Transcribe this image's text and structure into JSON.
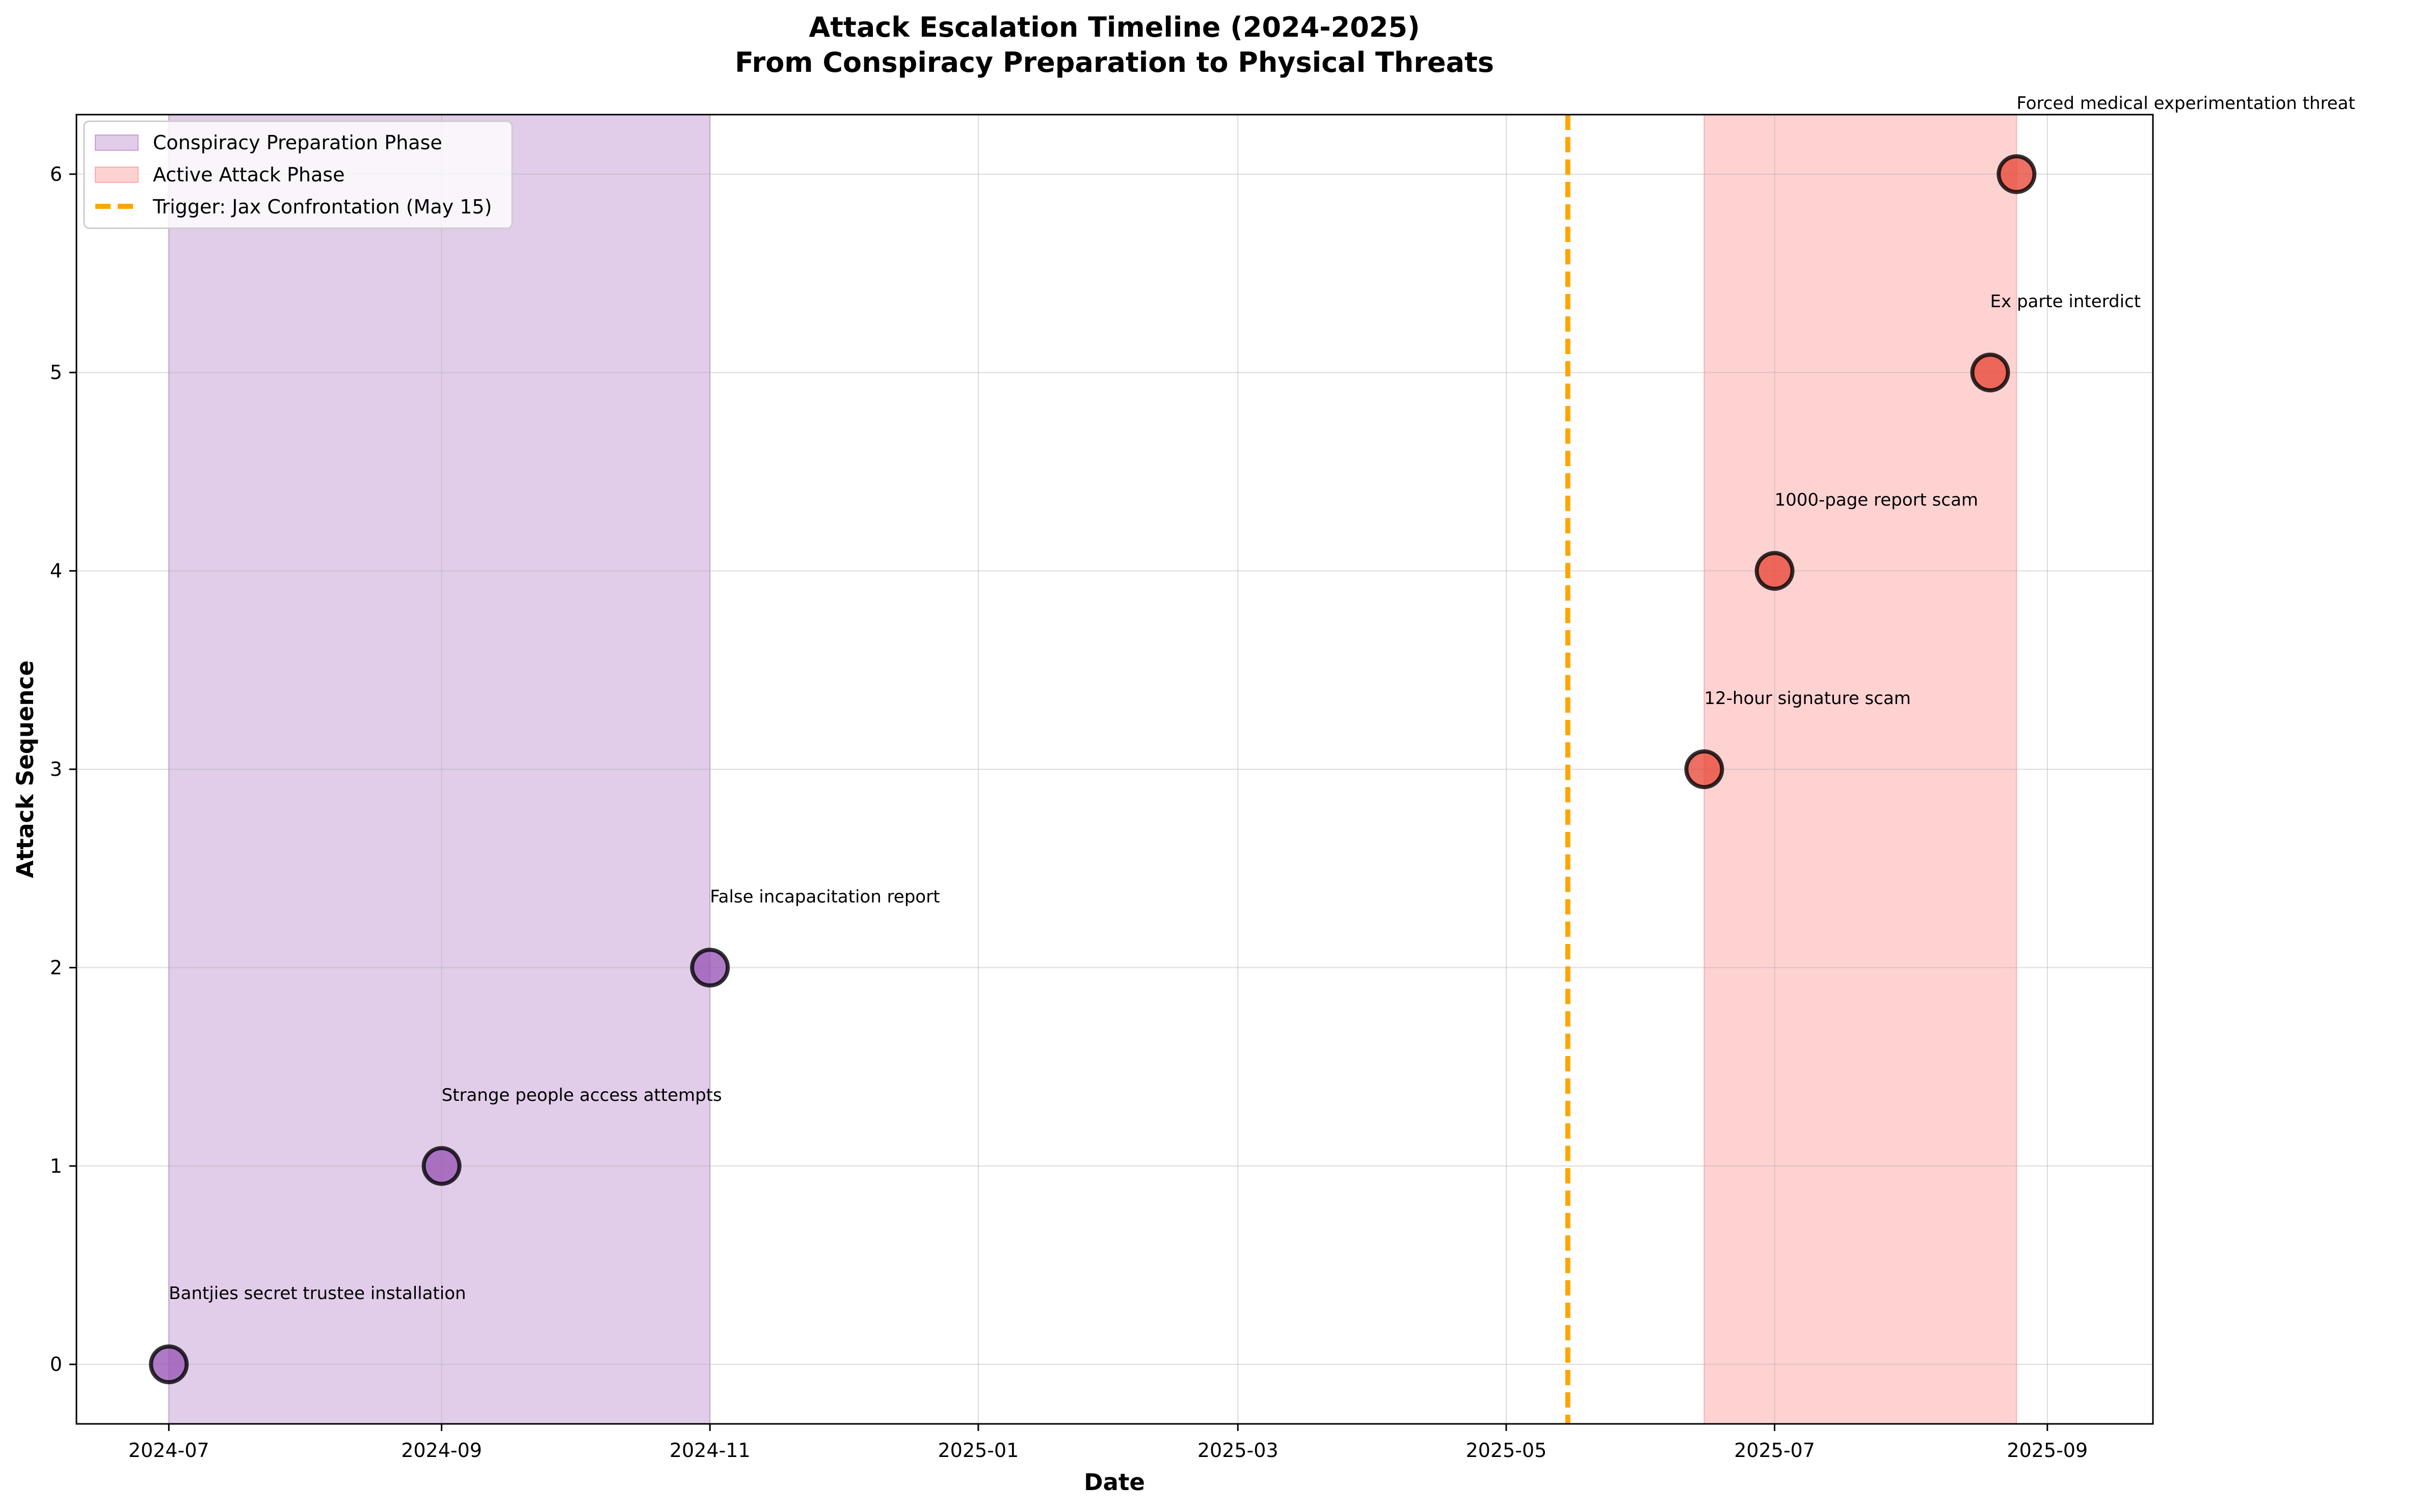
{
  "chart_data": {
    "type": "scatter",
    "title_lines": [
      "Attack Escalation Timeline (2024-2025)",
      "From Conspiracy Preparation to Physical Threats"
    ],
    "xlabel": "Date",
    "ylabel": "Attack Sequence",
    "x_range": [
      "2024-06-10",
      "2025-09-25"
    ],
    "y_range": [
      -0.3,
      6.3
    ],
    "x_ticks": [
      {
        "date": "2024-07-01",
        "label": "2024-07"
      },
      {
        "date": "2024-09-01",
        "label": "2024-09"
      },
      {
        "date": "2024-11-01",
        "label": "2024-11"
      },
      {
        "date": "2025-01-01",
        "label": "2025-01"
      },
      {
        "date": "2025-03-01",
        "label": "2025-03"
      },
      {
        "date": "2025-05-01",
        "label": "2025-05"
      },
      {
        "date": "2025-07-01",
        "label": "2025-07"
      },
      {
        "date": "2025-09-01",
        "label": "2025-09"
      }
    ],
    "y_ticks": [
      0,
      1,
      2,
      3,
      4,
      5,
      6
    ],
    "grid": true,
    "legend_position": "upper-left",
    "phases": [
      {
        "label": "Conspiracy Preparation Phase",
        "start": "2024-07-01",
        "end": "2024-11-01",
        "color": "#9b59b6"
      },
      {
        "label": "Active Attack Phase",
        "start": "2025-06-15",
        "end": "2025-08-25",
        "color": "#ff6b6b"
      }
    ],
    "trigger": {
      "label": "Trigger: Jax Confrontation (May 15)",
      "date": "2025-05-15",
      "color": "#ffa500"
    },
    "events": [
      {
        "date": "2024-07-01",
        "y": 0,
        "label": "Bantjies secret trustee installation",
        "color": "#9b59b6"
      },
      {
        "date": "2024-09-01",
        "y": 1,
        "label": "Strange people access attempts",
        "color": "#9b59b6"
      },
      {
        "date": "2024-11-01",
        "y": 2,
        "label": "False incapacitation report",
        "color": "#9b59b6"
      },
      {
        "date": "2025-06-15",
        "y": 3,
        "label": "12-hour signature scam",
        "color": "#e74c3c"
      },
      {
        "date": "2025-07-01",
        "y": 4,
        "label": "1000-page report scam",
        "color": "#e74c3c"
      },
      {
        "date": "2025-08-19",
        "y": 5,
        "label": "Ex parte interdict",
        "color": "#e74c3c"
      },
      {
        "date": "2025-08-25",
        "y": 6,
        "label": "Forced medical experimentation threat",
        "color": "#e74c3c"
      }
    ]
  }
}
